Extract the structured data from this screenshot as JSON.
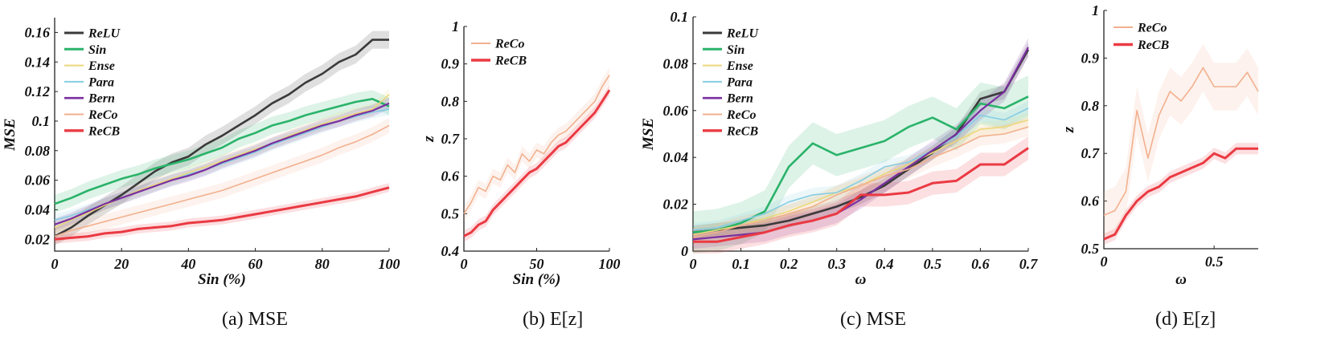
{
  "colors": {
    "ReLU": "#3a3a3a",
    "Sin": "#2ab36a",
    "Ense": "#ebd77a",
    "Para": "#86cde3",
    "Bern": "#7a2fa0",
    "ReCo": "#f2b08e",
    "ReCB": "#ea3a43"
  },
  "chart_data": [
    {
      "type": "line",
      "caption": "(a) MSE",
      "xlabel": "Sin (%)",
      "ylabel": "MSE",
      "xlim": [
        0,
        100
      ],
      "ylim": [
        0.012,
        0.17
      ],
      "xticks": [
        0,
        20,
        40,
        60,
        80,
        100
      ],
      "xtick_labels": [
        "0",
        "20",
        "40",
        "60",
        "80",
        "100"
      ],
      "yticks": [
        0.02,
        0.04,
        0.06,
        0.08,
        0.1,
        0.12,
        0.14,
        0.16
      ],
      "ytick_labels": [
        "0.02",
        "0.04",
        "0.06",
        "0.08",
        "0.1",
        "0.12",
        "0.14",
        "0.16"
      ],
      "legend": [
        "ReLU",
        "Sin",
        "Ense",
        "Para",
        "Bern",
        "ReCo",
        "ReCB"
      ],
      "x": [
        0,
        5,
        10,
        15,
        20,
        25,
        30,
        35,
        40,
        45,
        50,
        55,
        60,
        65,
        70,
        75,
        80,
        85,
        90,
        95,
        100
      ],
      "series": [
        {
          "name": "ReLU",
          "band": 0.006,
          "values": [
            0.022,
            0.028,
            0.036,
            0.043,
            0.05,
            0.058,
            0.066,
            0.072,
            0.076,
            0.084,
            0.09,
            0.097,
            0.104,
            0.112,
            0.118,
            0.126,
            0.132,
            0.14,
            0.145,
            0.155,
            0.155
          ]
        },
        {
          "name": "Sin",
          "band": 0.006,
          "values": [
            0.044,
            0.048,
            0.053,
            0.057,
            0.061,
            0.064,
            0.068,
            0.071,
            0.074,
            0.078,
            0.082,
            0.088,
            0.092,
            0.097,
            0.1,
            0.104,
            0.107,
            0.11,
            0.113,
            0.115,
            0.11
          ]
        },
        {
          "name": "Ense",
          "band": 0.004,
          "values": [
            0.028,
            0.033,
            0.038,
            0.043,
            0.048,
            0.053,
            0.057,
            0.061,
            0.065,
            0.069,
            0.073,
            0.077,
            0.081,
            0.085,
            0.09,
            0.094,
            0.098,
            0.102,
            0.105,
            0.108,
            0.118
          ]
        },
        {
          "name": "Para",
          "band": 0.004,
          "values": [
            0.033,
            0.036,
            0.04,
            0.044,
            0.048,
            0.052,
            0.056,
            0.06,
            0.064,
            0.067,
            0.071,
            0.075,
            0.079,
            0.084,
            0.088,
            0.092,
            0.096,
            0.1,
            0.103,
            0.106,
            0.108
          ]
        },
        {
          "name": "Bern",
          "band": 0.004,
          "values": [
            0.03,
            0.034,
            0.039,
            0.044,
            0.048,
            0.052,
            0.056,
            0.06,
            0.063,
            0.067,
            0.072,
            0.076,
            0.08,
            0.085,
            0.089,
            0.093,
            0.097,
            0.1,
            0.104,
            0.107,
            0.112
          ]
        },
        {
          "name": "ReCo",
          "band": 0.005,
          "values": [
            0.022,
            0.026,
            0.029,
            0.032,
            0.035,
            0.038,
            0.041,
            0.044,
            0.047,
            0.05,
            0.053,
            0.057,
            0.061,
            0.065,
            0.069,
            0.073,
            0.077,
            0.082,
            0.086,
            0.091,
            0.097
          ]
        },
        {
          "name": "ReCB",
          "band": 0.003,
          "values": [
            0.02,
            0.021,
            0.022,
            0.024,
            0.025,
            0.027,
            0.028,
            0.029,
            0.031,
            0.032,
            0.033,
            0.035,
            0.037,
            0.039,
            0.041,
            0.043,
            0.045,
            0.047,
            0.049,
            0.052,
            0.055
          ]
        }
      ]
    },
    {
      "type": "line",
      "caption": "(b) E[z]",
      "xlabel": "Sin (%)",
      "ylabel": "z",
      "xlim": [
        0,
        100
      ],
      "ylim": [
        0.4,
        1
      ],
      "xticks": [
        0,
        50,
        100
      ],
      "xtick_labels": [
        "0",
        "50",
        "100"
      ],
      "yticks": [
        0.4,
        0.5,
        0.6,
        0.7,
        0.8,
        0.9,
        1
      ],
      "ytick_labels": [
        "0.4",
        "0.5",
        "0.6",
        "0.7",
        "0.8",
        "0.9",
        "1"
      ],
      "legend": [
        "ReCo",
        "ReCB"
      ],
      "x": [
        0,
        5,
        10,
        15,
        20,
        25,
        30,
        35,
        40,
        45,
        50,
        55,
        60,
        65,
        70,
        75,
        80,
        85,
        90,
        95,
        100
      ],
      "series": [
        {
          "name": "ReCo",
          "band": 0.02,
          "values": [
            0.5,
            0.53,
            0.57,
            0.56,
            0.6,
            0.59,
            0.63,
            0.61,
            0.66,
            0.64,
            0.67,
            0.66,
            0.69,
            0.71,
            0.72,
            0.74,
            0.76,
            0.78,
            0.8,
            0.84,
            0.87
          ]
        },
        {
          "name": "ReCB",
          "band": 0.015,
          "values": [
            0.44,
            0.45,
            0.47,
            0.48,
            0.51,
            0.53,
            0.55,
            0.57,
            0.59,
            0.61,
            0.62,
            0.64,
            0.66,
            0.68,
            0.69,
            0.71,
            0.73,
            0.75,
            0.77,
            0.8,
            0.83
          ]
        }
      ]
    },
    {
      "type": "line",
      "caption": "(c) MSE",
      "xlabel": "ω",
      "ylabel": "MSE",
      "xlim": [
        0,
        0.7
      ],
      "ylim": [
        0,
        0.1
      ],
      "xticks": [
        0,
        0.1,
        0.2,
        0.3,
        0.4,
        0.5,
        0.6,
        0.7
      ],
      "xtick_labels": [
        "0",
        "0.1",
        "0.2",
        "0.3",
        "0.4",
        "0.5",
        "0.6",
        "0.7"
      ],
      "yticks": [
        0,
        0.02,
        0.04,
        0.06,
        0.08,
        0.1
      ],
      "ytick_labels": [
        "0",
        "0.02",
        "0.04",
        "0.06",
        "0.08",
        "0.1"
      ],
      "legend": [
        "ReLU",
        "Sin",
        "Ense",
        "Para",
        "Bern",
        "ReCo",
        "ReCB"
      ],
      "x": [
        0,
        0.05,
        0.1,
        0.15,
        0.2,
        0.25,
        0.3,
        0.35,
        0.4,
        0.45,
        0.5,
        0.55,
        0.6,
        0.65,
        0.7
      ],
      "series": [
        {
          "name": "ReLU",
          "band": 0.003,
          "values": [
            0.008,
            0.009,
            0.01,
            0.011,
            0.013,
            0.016,
            0.019,
            0.023,
            0.028,
            0.035,
            0.042,
            0.05,
            0.065,
            0.068,
            0.086
          ]
        },
        {
          "name": "Sin",
          "band": 0.009,
          "values": [
            0.008,
            0.009,
            0.012,
            0.017,
            0.036,
            0.046,
            0.041,
            0.044,
            0.047,
            0.053,
            0.057,
            0.052,
            0.063,
            0.061,
            0.066
          ]
        },
        {
          "name": "Ense",
          "band": 0.003,
          "values": [
            0.007,
            0.009,
            0.011,
            0.014,
            0.017,
            0.021,
            0.025,
            0.028,
            0.033,
            0.037,
            0.042,
            0.047,
            0.052,
            0.053,
            0.056
          ]
        },
        {
          "name": "Para",
          "band": 0.003,
          "values": [
            0.009,
            0.01,
            0.013,
            0.016,
            0.021,
            0.024,
            0.025,
            0.03,
            0.036,
            0.038,
            0.043,
            0.049,
            0.058,
            0.056,
            0.061
          ]
        },
        {
          "name": "Bern",
          "band": 0.004,
          "values": [
            0.005,
            0.006,
            0.007,
            0.008,
            0.011,
            0.013,
            0.016,
            0.022,
            0.029,
            0.036,
            0.043,
            0.05,
            0.06,
            0.068,
            0.087
          ]
        },
        {
          "name": "ReCo",
          "band": 0.004,
          "values": [
            0.006,
            0.008,
            0.011,
            0.013,
            0.016,
            0.019,
            0.024,
            0.028,
            0.032,
            0.035,
            0.04,
            0.044,
            0.049,
            0.05,
            0.053
          ]
        },
        {
          "name": "ReCB",
          "band": 0.005,
          "values": [
            0.004,
            0.004,
            0.006,
            0.008,
            0.011,
            0.013,
            0.016,
            0.024,
            0.024,
            0.025,
            0.029,
            0.03,
            0.037,
            0.037,
            0.044
          ]
        }
      ]
    },
    {
      "type": "line",
      "caption": "(d) E[z]",
      "xlabel": "ω",
      "ylabel": "z",
      "xlim": [
        0,
        0.7
      ],
      "ylim": [
        0.5,
        1
      ],
      "xticks": [
        0,
        0.5
      ],
      "xtick_labels": [
        "0",
        "0.5"
      ],
      "yticks": [
        0.5,
        0.6,
        0.7,
        0.8,
        0.9,
        1
      ],
      "ytick_labels": [
        "0.5",
        "0.6",
        "0.7",
        "0.8",
        "0.9",
        "1"
      ],
      "legend": [
        "ReCo",
        "ReCB"
      ],
      "x": [
        0,
        0.05,
        0.1,
        0.15,
        0.2,
        0.25,
        0.3,
        0.35,
        0.4,
        0.45,
        0.5,
        0.55,
        0.6,
        0.65,
        0.7
      ],
      "series": [
        {
          "name": "ReCo",
          "band": 0.05,
          "values": [
            0.57,
            0.58,
            0.62,
            0.79,
            0.69,
            0.78,
            0.83,
            0.81,
            0.84,
            0.88,
            0.84,
            0.84,
            0.84,
            0.87,
            0.83
          ]
        },
        {
          "name": "ReCB",
          "band": 0.012,
          "values": [
            0.52,
            0.53,
            0.57,
            0.6,
            0.62,
            0.63,
            0.65,
            0.66,
            0.67,
            0.68,
            0.7,
            0.69,
            0.71,
            0.71,
            0.71
          ]
        }
      ]
    }
  ]
}
